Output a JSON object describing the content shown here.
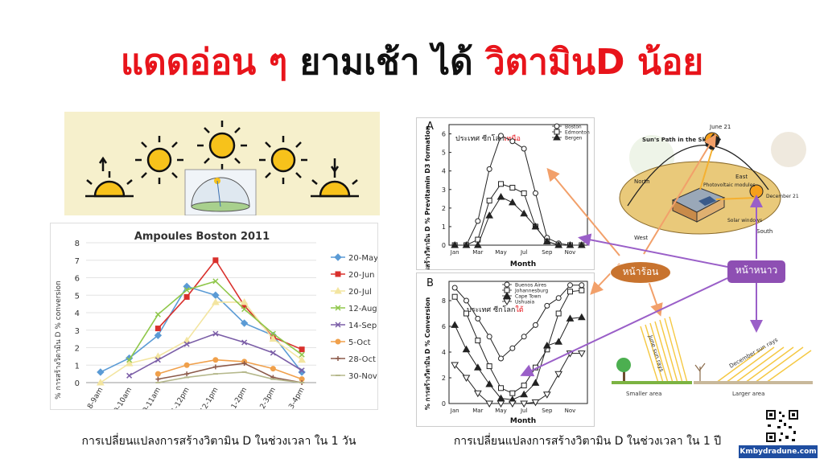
{
  "title": {
    "black_part1": "แดดอ่อน ๆ ยามเช้า ได้ ",
    "red_part0": "แดดอ่อน ๆ",
    "black_part": " ยามเช้า ได้ ",
    "red_part2": "วิตามินD น้อย"
  },
  "captions": {
    "left": "การเปลี่ยนแปลงการสร้างวิตามิน D ในช่วงเวลา ใน 1 วัน",
    "right": "การเปลี่ยนแปลงการสร้างวิตามิน D ในช่วงเวลา ใน 1 ปี"
  },
  "chart_data": [
    {
      "type": "line",
      "title": "Ampoules Boston 2011",
      "ylabel": "% การสร้างวิตามิน D % conversion",
      "categories": [
        "8-9am",
        "9-10am",
        "10-11am",
        "11-12pm",
        "12-1pm",
        "1-2pm",
        "2-3pm",
        "3-4pm"
      ],
      "ylim": [
        0,
        8
      ],
      "yticks": [
        "0",
        "1",
        "2",
        "3",
        "4",
        "5",
        "6",
        "7",
        "8"
      ],
      "series": [
        {
          "name": "20-May",
          "color": "#5b9bd5",
          "marker": "diamond",
          "values": [
            0.6,
            1.4,
            2.7,
            5.5,
            5.0,
            3.4,
            2.7,
            0.6
          ]
        },
        {
          "name": "20-Jun",
          "color": "#d9302c",
          "marker": "square",
          "values": [
            null,
            null,
            3.1,
            4.9,
            7.0,
            4.4,
            2.6,
            1.9
          ]
        },
        {
          "name": "20-Jul",
          "color": "#f3e5a0",
          "marker": "triangle",
          "values": [
            0.0,
            1.1,
            1.5,
            2.4,
            4.6,
            4.6,
            2.5,
            1.3
          ]
        },
        {
          "name": "12-Aug",
          "color": "#8fc74a",
          "marker": "x",
          "values": [
            null,
            1.3,
            3.9,
            5.3,
            5.8,
            4.2,
            2.8,
            1.6
          ]
        },
        {
          "name": "14-Sep",
          "color": "#7b5ea7",
          "marker": "x",
          "values": [
            null,
            0.4,
            1.3,
            2.2,
            2.8,
            2.3,
            1.7,
            0.7
          ]
        },
        {
          "name": "5-Oct",
          "color": "#f0a04b",
          "marker": "circle",
          "values": [
            null,
            null,
            0.5,
            1.0,
            1.3,
            1.2,
            0.8,
            0.2
          ]
        },
        {
          "name": "28-Oct",
          "color": "#8c5a4a",
          "marker": "plus",
          "values": [
            null,
            null,
            0.2,
            0.5,
            0.9,
            1.1,
            0.3,
            0.0
          ]
        },
        {
          "name": "30-Nov",
          "color": "#b5b88c",
          "marker": "dash",
          "values": [
            null,
            null,
            0.0,
            0.3,
            0.5,
            0.6,
            0.2,
            0.0
          ]
        }
      ]
    },
    {
      "type": "line",
      "panel": "A",
      "annotation_black": "ประเทศ ซีกโลก",
      "annotation_red": "เหนือ",
      "ylabel": "% การสร้างวิตามิน D % Previtamin D3 formation",
      "xlabel": "Month",
      "categories": [
        "Jan",
        "Feb",
        "Mar",
        "Apr",
        "May",
        "Jun",
        "Jul",
        "Aug",
        "Sep",
        "Oct",
        "Nov",
        "Dec"
      ],
      "xticks": [
        "Jan",
        "Mar",
        "May",
        "Jul",
        "Sep",
        "Nov"
      ],
      "yticks": [
        "0",
        "1",
        "2",
        "3",
        "4",
        "5",
        "6"
      ],
      "ylim": [
        0,
        6.5
      ],
      "series": [
        {
          "name": "Boston",
          "marker": "circle",
          "values": [
            0,
            0,
            1.3,
            4.1,
            5.9,
            5.6,
            5.2,
            2.8,
            0.4,
            0.1,
            0,
            0
          ]
        },
        {
          "name": "Edmonton",
          "marker": "square",
          "values": [
            0,
            0,
            0.3,
            2.4,
            3.3,
            3.1,
            2.8,
            1.0,
            0.2,
            0,
            0,
            0
          ]
        },
        {
          "name": "Bergen",
          "marker": "triangle",
          "values": [
            0,
            0,
            0,
            1.6,
            2.6,
            2.3,
            1.7,
            1.0,
            0.2,
            0,
            0,
            0
          ]
        }
      ]
    },
    {
      "type": "line",
      "panel": "B",
      "annotation_black": "ประเทศ ซีกโลก",
      "annotation_red": "ใต้",
      "ylabel": "% การสร้างวิตามิน D % Conversion",
      "xlabel": "Month",
      "categories": [
        "Jan",
        "Feb",
        "Mar",
        "Apr",
        "May",
        "Jun",
        "Jul",
        "Aug",
        "Sep",
        "Oct",
        "Nov",
        "Dec"
      ],
      "xticks": [
        "Jan",
        "Mar",
        "May",
        "Jul",
        "Sep",
        "Nov"
      ],
      "yticks": [
        "0",
        "2",
        "4",
        "6",
        "8"
      ],
      "ylim": [
        0,
        9.5
      ],
      "series": [
        {
          "name": "Buenos Aires",
          "marker": "circle",
          "values": [
            9.0,
            8.0,
            6.6,
            5.2,
            3.5,
            4.3,
            5.2,
            6.1,
            7.6,
            8.2,
            9.2,
            9.2
          ]
        },
        {
          "name": "Johannesburg",
          "marker": "square",
          "values": [
            8.3,
            7.0,
            4.9,
            2.9,
            1.2,
            0.8,
            1.4,
            2.8,
            4.2,
            7.0,
            8.7,
            8.8
          ]
        },
        {
          "name": "Cape Town",
          "marker": "triangle",
          "values": [
            6.1,
            4.2,
            2.8,
            1.5,
            0.4,
            0.3,
            0.7,
            1.6,
            4.5,
            4.8,
            6.6,
            6.7
          ]
        },
        {
          "name": "Ushuaia",
          "marker": "dtriangle",
          "values": [
            3.0,
            2.0,
            0.8,
            0.0,
            0.0,
            0.0,
            0.0,
            0.1,
            0.7,
            2.3,
            3.9,
            3.9
          ]
        }
      ]
    }
  ],
  "diagram": {
    "heading": "Sun's Path in the Sky",
    "labels": [
      "June 21",
      "East",
      "North",
      "Photovoltaic modules",
      "December 21",
      "Solar windows",
      "South",
      "West"
    ],
    "june_rays": "June sun rays",
    "december_rays": "December sun rays",
    "smaller_area": "Smaller area",
    "larger_area": "Larger area"
  },
  "bubbles": {
    "summer": "หน้าร้อน",
    "winter": "หน้าหนาว"
  },
  "footer": {
    "site": "Kmbydradune.com"
  },
  "colors": {
    "title_red": "#e8141b",
    "summer_bubble": "#c8732e",
    "winter_bubble": "#8e4fb3",
    "orange_arrow": "#f2a06a",
    "purple_arrow": "#9a5fc8",
    "sun_yellow": "#f7c21b"
  }
}
